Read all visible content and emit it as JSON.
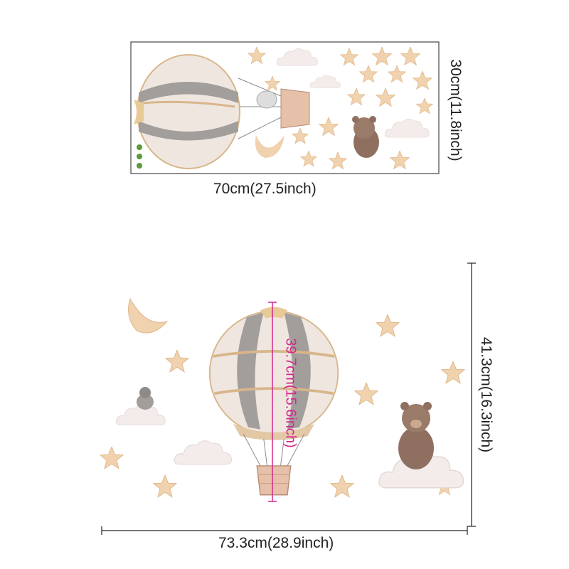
{
  "sheet": {
    "width_label": "70cm(27.5inch)",
    "height_label": "30cm(11.8inch)"
  },
  "installed": {
    "width_label": "73.3cm(28.9inch)",
    "height_label": "41.3cm(16.3inch)",
    "balloon_height_label": "39.7cm(15.6inch)"
  },
  "colors": {
    "balloon_gray": "#9e9a97",
    "balloon_cream": "#efe6e0",
    "tan": "#dcb98c",
    "star": "#f0d2ae",
    "bear": "#8f7060",
    "cloud": "#f3ecea",
    "measure_pink": "#d3288c"
  }
}
